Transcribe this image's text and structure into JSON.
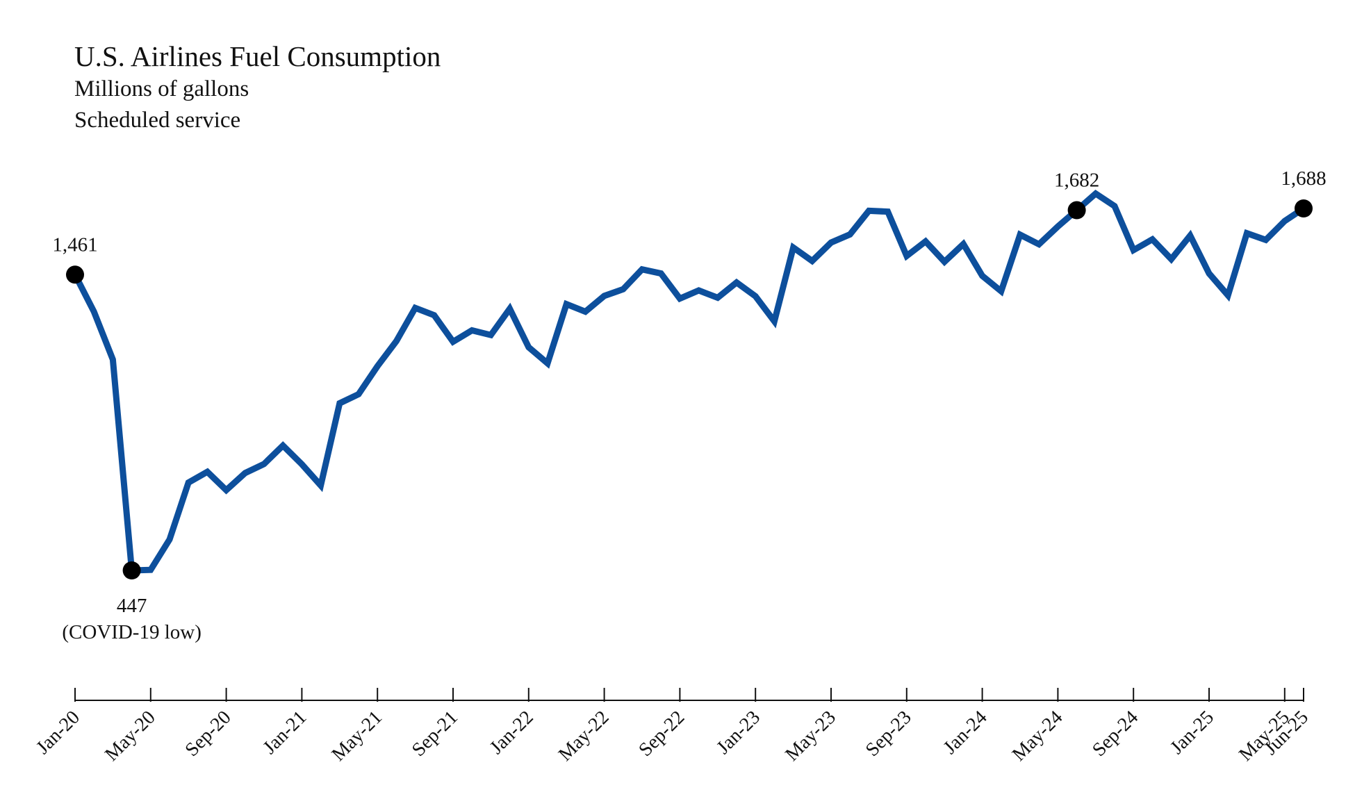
{
  "chart_data": {
    "type": "line",
    "title": "U.S. Airlines Fuel Consumption",
    "subtitles": [
      "Millions of gallons",
      "Scheduled service"
    ],
    "xlabel": "",
    "ylabel": "",
    "ylim": [
      200,
      2000
    ],
    "grid": false,
    "line_color": "#0d4f9c",
    "marker_color": "#000000",
    "x": [
      "Jan-20",
      "Feb-20",
      "Mar-20",
      "Apr-20",
      "May-20",
      "Jun-20",
      "Jul-20",
      "Aug-20",
      "Sep-20",
      "Oct-20",
      "Nov-20",
      "Dec-20",
      "Jan-21",
      "Feb-21",
      "Mar-21",
      "Apr-21",
      "May-21",
      "Jun-21",
      "Jul-21",
      "Aug-21",
      "Sep-21",
      "Oct-21",
      "Nov-21",
      "Dec-21",
      "Jan-22",
      "Feb-22",
      "Mar-22",
      "Apr-22",
      "May-22",
      "Jun-22",
      "Jul-22",
      "Aug-22",
      "Sep-22",
      "Oct-22",
      "Nov-22",
      "Dec-22",
      "Jan-23",
      "Feb-23",
      "Mar-23",
      "Apr-23",
      "May-23",
      "Jun-23",
      "Jul-23",
      "Aug-23",
      "Sep-23",
      "Oct-23",
      "Nov-23",
      "Dec-23",
      "Jan-24",
      "Feb-24",
      "Mar-24",
      "Apr-24",
      "May-24",
      "Jun-24",
      "Jul-24",
      "Aug-24",
      "Sep-24",
      "Oct-24",
      "Nov-24",
      "Dec-24",
      "Jan-25",
      "Feb-25",
      "Mar-25",
      "Apr-25",
      "May-25",
      "Jun-25"
    ],
    "values": [
      1461,
      1334,
      1170,
      447,
      449,
      553,
      748,
      785,
      722,
      781,
      812,
      875,
      811,
      738,
      1020,
      1051,
      1147,
      1233,
      1347,
      1322,
      1231,
      1270,
      1254,
      1344,
      1212,
      1157,
      1360,
      1334,
      1388,
      1411,
      1479,
      1465,
      1379,
      1407,
      1382,
      1434,
      1387,
      1301,
      1554,
      1508,
      1571,
      1599,
      1680,
      1677,
      1525,
      1575,
      1505,
      1566,
      1457,
      1404,
      1598,
      1565,
      1626,
      1682,
      1739,
      1696,
      1545,
      1582,
      1514,
      1595,
      1465,
      1390,
      1603,
      1580,
      1645,
      1688
    ],
    "tick_labels": [
      "Jan-20",
      "May-20",
      "Sep-20",
      "Jan-21",
      "May-21",
      "Sep-21",
      "Jan-22",
      "May-22",
      "Sep-22",
      "Jan-23",
      "May-23",
      "Sep-23",
      "Jan-24",
      "May-24",
      "Sep-24",
      "Jan-25",
      "May-25",
      "Jun-25"
    ],
    "annotations": [
      {
        "x": "Jan-20",
        "value": 1461,
        "lines": [
          "1,461"
        ],
        "position": "above"
      },
      {
        "x": "Apr-20",
        "value": 447,
        "lines": [
          "447",
          "(COVID-19 low)"
        ],
        "position": "below"
      },
      {
        "x": "Jun-24",
        "value": 1682,
        "lines": [
          "1,682"
        ],
        "position": "above"
      },
      {
        "x": "Jun-25",
        "value": 1688,
        "lines": [
          "1,688"
        ],
        "position": "above"
      }
    ]
  }
}
